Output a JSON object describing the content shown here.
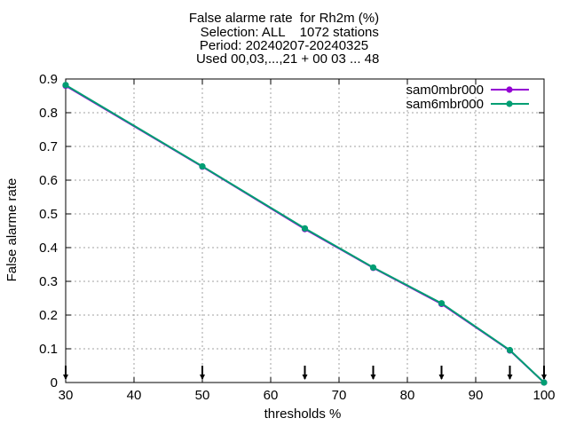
{
  "chart_data": {
    "type": "line",
    "title_lines": [
      "False alarme rate  for Rh2m (%)",
      "   Selection: ALL    1072 stations",
      "Period: 20240207-20240325",
      "  Used 00,03,...,21 + 00 03 ... 48"
    ],
    "xlabel": "thresholds %",
    "ylabel": "False alarme rate",
    "xlim": [
      30,
      100
    ],
    "ylim": [
      0,
      0.9
    ],
    "x_ticks": [
      "30",
      "40",
      "50",
      "60",
      "70",
      "80",
      "90",
      "100"
    ],
    "y_ticks": [
      "0",
      "0.1",
      "0.2",
      "0.3",
      "0.4",
      "0.5",
      "0.6",
      "0.7",
      "0.8",
      "0.9"
    ],
    "grid": true,
    "legend_position": "top-right",
    "threshold_markers": [
      30,
      50,
      65,
      75,
      85,
      95,
      100
    ],
    "series": [
      {
        "name": "sam0mbr000",
        "color": "#9400d3",
        "x": [
          30,
          50,
          65,
          75,
          85,
          95,
          100
        ],
        "y": [
          0.88,
          0.64,
          0.455,
          0.34,
          0.233,
          0.095,
          0.0
        ]
      },
      {
        "name": "sam6mbr000",
        "color": "#009e73",
        "x": [
          30,
          50,
          65,
          75,
          85,
          95,
          100
        ],
        "y": [
          0.882,
          0.641,
          0.457,
          0.341,
          0.235,
          0.096,
          0.0
        ]
      }
    ]
  }
}
